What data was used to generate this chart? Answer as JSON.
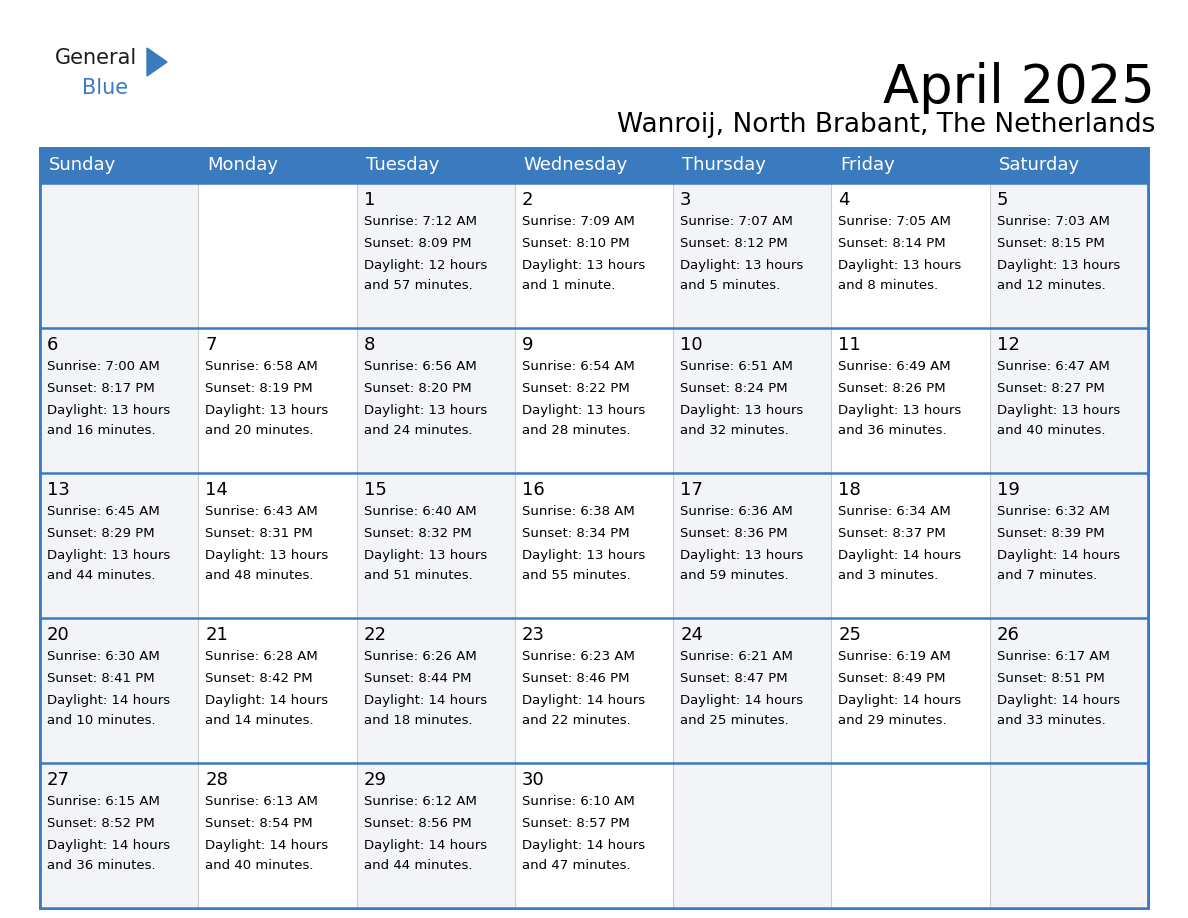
{
  "title": "April 2025",
  "subtitle": "Wanroij, North Brabant, The Netherlands",
  "header_bg_color": "#3a7bbf",
  "header_text_color": "#ffffff",
  "cell_bg_even": "#f2f4f7",
  "cell_bg_odd": "#ffffff",
  "border_color": "#3a7bbf",
  "day_names": [
    "Sunday",
    "Monday",
    "Tuesday",
    "Wednesday",
    "Thursday",
    "Friday",
    "Saturday"
  ],
  "weeks": [
    [
      {
        "day": "",
        "sunrise": "",
        "sunset": "",
        "daylight": ""
      },
      {
        "day": "",
        "sunrise": "",
        "sunset": "",
        "daylight": ""
      },
      {
        "day": "1",
        "sunrise": "Sunrise: 7:12 AM",
        "sunset": "Sunset: 8:09 PM",
        "daylight": "Daylight: 12 hours\nand 57 minutes."
      },
      {
        "day": "2",
        "sunrise": "Sunrise: 7:09 AM",
        "sunset": "Sunset: 8:10 PM",
        "daylight": "Daylight: 13 hours\nand 1 minute."
      },
      {
        "day": "3",
        "sunrise": "Sunrise: 7:07 AM",
        "sunset": "Sunset: 8:12 PM",
        "daylight": "Daylight: 13 hours\nand 5 minutes."
      },
      {
        "day": "4",
        "sunrise": "Sunrise: 7:05 AM",
        "sunset": "Sunset: 8:14 PM",
        "daylight": "Daylight: 13 hours\nand 8 minutes."
      },
      {
        "day": "5",
        "sunrise": "Sunrise: 7:03 AM",
        "sunset": "Sunset: 8:15 PM",
        "daylight": "Daylight: 13 hours\nand 12 minutes."
      }
    ],
    [
      {
        "day": "6",
        "sunrise": "Sunrise: 7:00 AM",
        "sunset": "Sunset: 8:17 PM",
        "daylight": "Daylight: 13 hours\nand 16 minutes."
      },
      {
        "day": "7",
        "sunrise": "Sunrise: 6:58 AM",
        "sunset": "Sunset: 8:19 PM",
        "daylight": "Daylight: 13 hours\nand 20 minutes."
      },
      {
        "day": "8",
        "sunrise": "Sunrise: 6:56 AM",
        "sunset": "Sunset: 8:20 PM",
        "daylight": "Daylight: 13 hours\nand 24 minutes."
      },
      {
        "day": "9",
        "sunrise": "Sunrise: 6:54 AM",
        "sunset": "Sunset: 8:22 PM",
        "daylight": "Daylight: 13 hours\nand 28 minutes."
      },
      {
        "day": "10",
        "sunrise": "Sunrise: 6:51 AM",
        "sunset": "Sunset: 8:24 PM",
        "daylight": "Daylight: 13 hours\nand 32 minutes."
      },
      {
        "day": "11",
        "sunrise": "Sunrise: 6:49 AM",
        "sunset": "Sunset: 8:26 PM",
        "daylight": "Daylight: 13 hours\nand 36 minutes."
      },
      {
        "day": "12",
        "sunrise": "Sunrise: 6:47 AM",
        "sunset": "Sunset: 8:27 PM",
        "daylight": "Daylight: 13 hours\nand 40 minutes."
      }
    ],
    [
      {
        "day": "13",
        "sunrise": "Sunrise: 6:45 AM",
        "sunset": "Sunset: 8:29 PM",
        "daylight": "Daylight: 13 hours\nand 44 minutes."
      },
      {
        "day": "14",
        "sunrise": "Sunrise: 6:43 AM",
        "sunset": "Sunset: 8:31 PM",
        "daylight": "Daylight: 13 hours\nand 48 minutes."
      },
      {
        "day": "15",
        "sunrise": "Sunrise: 6:40 AM",
        "sunset": "Sunset: 8:32 PM",
        "daylight": "Daylight: 13 hours\nand 51 minutes."
      },
      {
        "day": "16",
        "sunrise": "Sunrise: 6:38 AM",
        "sunset": "Sunset: 8:34 PM",
        "daylight": "Daylight: 13 hours\nand 55 minutes."
      },
      {
        "day": "17",
        "sunrise": "Sunrise: 6:36 AM",
        "sunset": "Sunset: 8:36 PM",
        "daylight": "Daylight: 13 hours\nand 59 minutes."
      },
      {
        "day": "18",
        "sunrise": "Sunrise: 6:34 AM",
        "sunset": "Sunset: 8:37 PM",
        "daylight": "Daylight: 14 hours\nand 3 minutes."
      },
      {
        "day": "19",
        "sunrise": "Sunrise: 6:32 AM",
        "sunset": "Sunset: 8:39 PM",
        "daylight": "Daylight: 14 hours\nand 7 minutes."
      }
    ],
    [
      {
        "day": "20",
        "sunrise": "Sunrise: 6:30 AM",
        "sunset": "Sunset: 8:41 PM",
        "daylight": "Daylight: 14 hours\nand 10 minutes."
      },
      {
        "day": "21",
        "sunrise": "Sunrise: 6:28 AM",
        "sunset": "Sunset: 8:42 PM",
        "daylight": "Daylight: 14 hours\nand 14 minutes."
      },
      {
        "day": "22",
        "sunrise": "Sunrise: 6:26 AM",
        "sunset": "Sunset: 8:44 PM",
        "daylight": "Daylight: 14 hours\nand 18 minutes."
      },
      {
        "day": "23",
        "sunrise": "Sunrise: 6:23 AM",
        "sunset": "Sunset: 8:46 PM",
        "daylight": "Daylight: 14 hours\nand 22 minutes."
      },
      {
        "day": "24",
        "sunrise": "Sunrise: 6:21 AM",
        "sunset": "Sunset: 8:47 PM",
        "daylight": "Daylight: 14 hours\nand 25 minutes."
      },
      {
        "day": "25",
        "sunrise": "Sunrise: 6:19 AM",
        "sunset": "Sunset: 8:49 PM",
        "daylight": "Daylight: 14 hours\nand 29 minutes."
      },
      {
        "day": "26",
        "sunrise": "Sunrise: 6:17 AM",
        "sunset": "Sunset: 8:51 PM",
        "daylight": "Daylight: 14 hours\nand 33 minutes."
      }
    ],
    [
      {
        "day": "27",
        "sunrise": "Sunrise: 6:15 AM",
        "sunset": "Sunset: 8:52 PM",
        "daylight": "Daylight: 14 hours\nand 36 minutes."
      },
      {
        "day": "28",
        "sunrise": "Sunrise: 6:13 AM",
        "sunset": "Sunset: 8:54 PM",
        "daylight": "Daylight: 14 hours\nand 40 minutes."
      },
      {
        "day": "29",
        "sunrise": "Sunrise: 6:12 AM",
        "sunset": "Sunset: 8:56 PM",
        "daylight": "Daylight: 14 hours\nand 44 minutes."
      },
      {
        "day": "30",
        "sunrise": "Sunrise: 6:10 AM",
        "sunset": "Sunset: 8:57 PM",
        "daylight": "Daylight: 14 hours\nand 47 minutes."
      },
      {
        "day": "",
        "sunrise": "",
        "sunset": "",
        "daylight": ""
      },
      {
        "day": "",
        "sunrise": "",
        "sunset": "",
        "daylight": ""
      },
      {
        "day": "",
        "sunrise": "",
        "sunset": "",
        "daylight": ""
      }
    ]
  ],
  "logo_color_general": "#1c1c1c",
  "logo_color_blue": "#3a7bbf",
  "logo_triangle_color": "#3a7bbf",
  "title_fontsize": 38,
  "subtitle_fontsize": 19,
  "header_fontsize": 13,
  "day_num_fontsize": 13,
  "cell_fontsize": 9.5
}
